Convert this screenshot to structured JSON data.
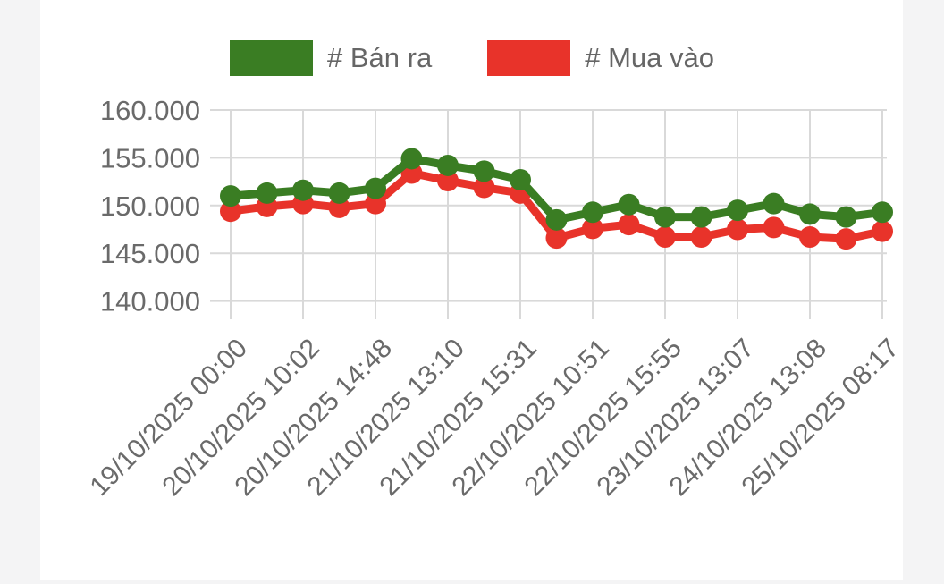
{
  "page": {
    "background_color": "#f4f4f5",
    "card_background_color": "#ffffff",
    "text_color": "#6a6a6a",
    "grid_color": "#d9d9d9"
  },
  "legend": {
    "position": "top",
    "items": [
      {
        "label": "# Bán ra",
        "color": "#3a7d23"
      },
      {
        "label": "# Mua vào",
        "color": "#e8332a"
      }
    ]
  },
  "chart_data": {
    "type": "line",
    "title": "",
    "xlabel": "",
    "ylabel": "",
    "grid": true,
    "legend_position": "top",
    "ylim": [
      138.1,
      160
    ],
    "y_tick_values": [
      160,
      155,
      150,
      145,
      140
    ],
    "y_tick_labels": [
      "160.000",
      "155.000",
      "150.000",
      "145.000",
      "140.000"
    ],
    "x_tick_labels": [
      "19/10/2025 00:00",
      "20/10/2025 10:02",
      "20/10/2025 14:48",
      "21/10/2025 13:10",
      "21/10/2025 15:31",
      "22/10/2025 10:51",
      "22/10/2025 15:55",
      "23/10/2025 13:07",
      "24/10/2025 13:08",
      "25/10/2025 08:17"
    ],
    "x_tick_every_n_points": 2,
    "point_count": 19,
    "series": [
      {
        "name": "# Bán ra",
        "color": "#3a7d23",
        "values": [
          151.0,
          151.3,
          151.6,
          151.3,
          151.8,
          154.9,
          154.2,
          153.6,
          152.7,
          148.5,
          149.3,
          150.1,
          148.8,
          148.8,
          149.5,
          150.2,
          149.1,
          148.8,
          149.3
        ]
      },
      {
        "name": "# Mua vào",
        "color": "#e8332a",
        "values": [
          149.4,
          149.9,
          150.2,
          149.8,
          150.2,
          153.4,
          152.6,
          151.9,
          151.3,
          146.6,
          147.6,
          148.0,
          146.7,
          146.7,
          147.5,
          147.7,
          146.7,
          146.5,
          147.3
        ]
      }
    ]
  }
}
